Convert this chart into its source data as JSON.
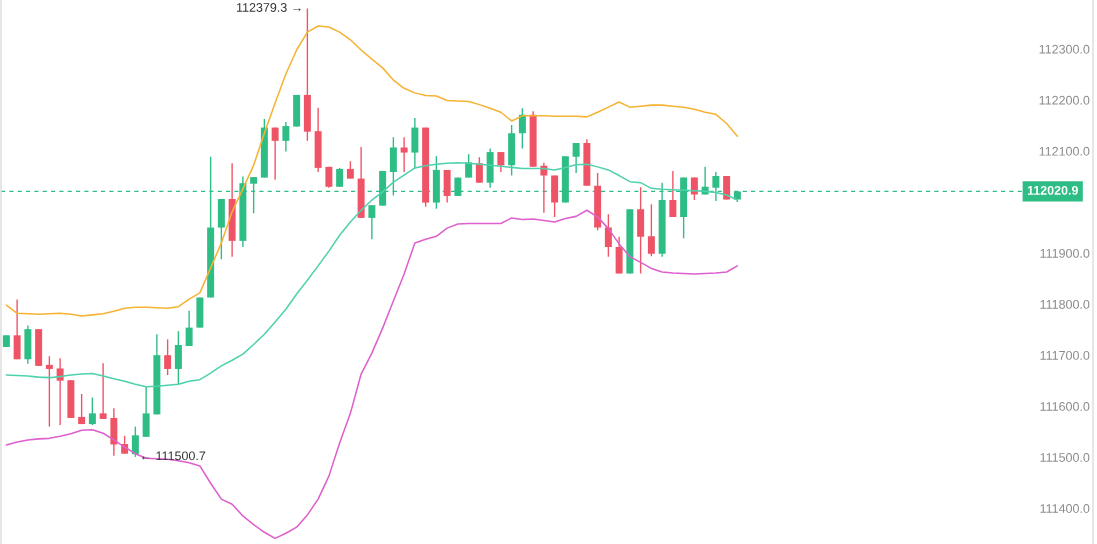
{
  "chart_data": {
    "type": "candlestick",
    "categories": [
      null,
      null,
      null,
      null,
      null,
      null,
      null,
      null,
      null,
      null,
      null,
      null,
      null,
      null,
      null,
      null,
      null,
      null,
      null,
      null,
      null,
      null,
      null,
      null,
      null,
      null,
      null,
      null,
      null,
      null,
      null,
      null,
      null,
      null,
      null,
      null,
      null,
      null,
      null,
      null,
      null,
      null,
      null,
      null,
      null,
      null,
      null,
      null,
      null,
      null,
      null,
      null,
      null,
      null,
      null,
      null,
      null,
      null,
      null,
      null,
      null,
      null,
      null,
      null,
      null,
      null,
      null,
      null,
      null
    ],
    "ohlc": [
      [
        111716,
        111739,
        111716,
        111739
      ],
      [
        111739,
        111809,
        111692,
        111692
      ],
      [
        111692,
        111758,
        111683,
        111751
      ],
      [
        111751,
        111751,
        111679,
        111679
      ],
      [
        111681,
        111698,
        111560,
        111673
      ],
      [
        111674,
        111694,
        111563,
        111650
      ],
      [
        111651,
        111651,
        111577,
        111577
      ],
      [
        111579,
        111624,
        111565,
        111565
      ],
      [
        111565,
        111617,
        111563,
        111586
      ],
      [
        111586,
        111684,
        111575,
        111575
      ],
      [
        111577,
        111596,
        111503,
        111525
      ],
      [
        111526,
        111542,
        111507,
        111507
      ],
      [
        111506,
        111560,
        111500.7,
        111543
      ],
      [
        111540,
        111638,
        111540,
        111586
      ],
      [
        111584,
        111741,
        111584,
        111700
      ],
      [
        111700,
        111731,
        111661,
        111673
      ],
      [
        111673,
        111747,
        111642,
        111720
      ],
      [
        111718,
        111787,
        111718,
        111754
      ],
      [
        111754,
        111813,
        111754,
        111813
      ],
      [
        111813,
        112089,
        111813,
        111950
      ],
      [
        111950,
        112006,
        111888,
        112006
      ],
      [
        112006,
        112076,
        111893,
        111924
      ],
      [
        111924,
        112050,
        111912,
        112037
      ],
      [
        112036,
        112049,
        111978,
        112049
      ],
      [
        112048,
        112163,
        112048,
        112146
      ],
      [
        112146,
        112146,
        112044,
        112120
      ],
      [
        112120,
        112157,
        112099,
        112149
      ],
      [
        112148,
        112210,
        112148,
        112210
      ],
      [
        112210,
        112379.3,
        112120,
        112138
      ],
      [
        112139,
        112185,
        112059,
        112067
      ],
      [
        112069,
        112069,
        112028,
        112030
      ],
      [
        112030,
        112067,
        112030,
        112065
      ],
      [
        112065,
        112080,
        112046,
        112046
      ],
      [
        112046,
        112108,
        111969,
        111969
      ],
      [
        111969,
        111994,
        111927,
        111994
      ],
      [
        111993,
        112061,
        111993,
        112061
      ],
      [
        112059,
        112127,
        112013,
        112107
      ],
      [
        112107,
        112127,
        112059,
        112097
      ],
      [
        112097,
        112165,
        112066,
        112146
      ],
      [
        112146,
        112146,
        111991,
        111999
      ],
      [
        111999,
        112090,
        111987,
        112063
      ],
      [
        112063,
        112063,
        111999,
        112012
      ],
      [
        112012,
        112048,
        112012,
        112048
      ],
      [
        112048,
        112094,
        112048,
        112078
      ],
      [
        112076,
        112088,
        112038,
        112038
      ],
      [
        112038,
        112105,
        112028,
        112098
      ],
      [
        112098,
        112098,
        112059,
        112072
      ],
      [
        112072,
        112151,
        112052,
        112135
      ],
      [
        112135,
        112184,
        112105,
        112171
      ],
      [
        112171,
        112178,
        112069,
        112069
      ],
      [
        112071,
        112077,
        111979,
        112052
      ],
      [
        112052,
        112052,
        111971,
        111999
      ],
      [
        111999,
        112090,
        111999,
        112090
      ],
      [
        112089,
        112116,
        112057,
        112116
      ],
      [
        112116,
        112123,
        112032,
        112032
      ],
      [
        112032,
        112057,
        111945,
        111950
      ],
      [
        111950,
        111976,
        111893,
        111912
      ],
      [
        111912,
        111932,
        111860,
        111860
      ],
      [
        111860,
        111986,
        111860,
        111986
      ],
      [
        111986,
        112029,
        111860,
        111932
      ],
      [
        111933,
        111996,
        111894,
        111899
      ],
      [
        111899,
        112038,
        111893,
        112004
      ],
      [
        112004,
        112061,
        111971,
        111971
      ],
      [
        111971,
        112048,
        111929,
        112048
      ],
      [
        112048,
        112048,
        112004,
        112015
      ],
      [
        112015,
        112069,
        112015,
        112030
      ],
      [
        112028,
        112059,
        112002,
        112051
      ],
      [
        112051,
        112051,
        112005,
        112005
      ],
      [
        112005,
        112020.9,
        112000,
        112020.9
      ]
    ],
    "colors": [
      "#2ebd85",
      "#ef5466",
      "#2ebd85",
      "#ef5466",
      "#ef5466",
      "#ef5466",
      "#ef5466",
      "#ef5466",
      "#2ebd85",
      "#ef5466",
      "#ef5466",
      "#ef5466",
      "#2ebd85",
      "#2ebd85",
      "#2ebd85",
      "#ef5466",
      "#2ebd85",
      "#2ebd85",
      "#2ebd85",
      "#2ebd85",
      "#2ebd85",
      "#ef5466",
      "#2ebd85",
      "#2ebd85",
      "#2ebd85",
      "#ef5466",
      "#2ebd85",
      "#2ebd85",
      "#ef5466",
      "#ef5466",
      "#ef5466",
      "#2ebd85",
      "#ef5466",
      "#ef5466",
      "#2ebd85",
      "#2ebd85",
      "#2ebd85",
      "#ef5466",
      "#2ebd85",
      "#ef5466",
      "#2ebd85",
      "#ef5466",
      "#2ebd85",
      "#2ebd85",
      "#ef5466",
      "#2ebd85",
      "#ef5466",
      "#2ebd85",
      "#2ebd85",
      "#ef5466",
      "#ef5466",
      "#ef5466",
      "#2ebd85",
      "#2ebd85",
      "#ef5466",
      "#ef5466",
      "#ef5466",
      "#ef5466",
      "#2ebd85",
      "#ef5466",
      "#ef5466",
      "#2ebd85",
      "#ef5466",
      "#2ebd85",
      "#ef5466",
      "#2ebd85",
      "#2ebd85",
      "#ef5466",
      "#2ebd85"
    ],
    "series": [
      {
        "type": "line",
        "color": "#f5b333",
        "values": [
          111798,
          111782,
          111781,
          111780,
          111781,
          111782,
          111780,
          111777,
          111779,
          111781,
          111786,
          111792,
          111794,
          111794,
          111793,
          111792,
          111795,
          111810,
          111822,
          111871,
          111920,
          111981,
          112026,
          112072,
          112135,
          112194,
          112251,
          112298,
          112333,
          112345,
          112343,
          112333,
          112318,
          112298,
          112280,
          112263,
          112239,
          112223,
          112214,
          112209,
          112208,
          112199,
          112198,
          112197,
          112191,
          112184,
          112176,
          112159,
          112169,
          112169,
          112169,
          112168,
          112168,
          112168,
          112167,
          112176,
          112186,
          112196,
          112186,
          112188,
          112190,
          112190,
          112188,
          112186,
          112182,
          112176,
          112172,
          112154,
          112129
        ]
      },
      {
        "type": "line",
        "color": "#4fd1ae",
        "values": [
          111661,
          111660,
          111659,
          111657,
          111656,
          111658,
          111661,
          111663,
          111664,
          111659,
          111654,
          111649,
          111643,
          111638,
          111639,
          111641,
          111643,
          111649,
          111652,
          111665,
          111679,
          111690,
          111702,
          111721,
          111741,
          111765,
          111790,
          111820,
          111847,
          111875,
          111904,
          111935,
          111961,
          111984,
          112004,
          112020,
          112039,
          112053,
          112067,
          112071,
          112074,
          112076,
          112077,
          112076,
          112074,
          112072,
          112070,
          112068,
          112066,
          112066,
          112066,
          112063,
          112068,
          112073,
          112074,
          112069,
          112063,
          112052,
          112040,
          112038,
          112027,
          112025,
          112024,
          112023,
          112022,
          112021,
          112019,
          112014,
          112004
        ]
      },
      {
        "type": "line",
        "color": "#de5fce",
        "values": [
          111524,
          111530,
          111534,
          111536,
          111537,
          111541,
          111546,
          111553,
          111554,
          111547,
          111534,
          111520,
          111507,
          111498,
          111497,
          111496,
          111493,
          111489,
          111483,
          111449,
          111418,
          111408,
          111385,
          111368,
          111353,
          111341,
          111351,
          111363,
          111387,
          111418,
          111463,
          111528,
          111586,
          111663,
          111704,
          111753,
          111806,
          111859,
          111920,
          111927,
          111933,
          111949,
          111957,
          111958,
          111958,
          111958,
          111958,
          111969,
          111966,
          111967,
          111964,
          111961,
          111968,
          111972,
          111984,
          111971,
          111948,
          111918,
          111893,
          111882,
          111870,
          111863,
          111861,
          111860,
          111859,
          111860,
          111861,
          111863,
          111875
        ]
      }
    ],
    "ylim": [
      111330,
      112396
    ],
    "yticks": [
      {
        "value": 111400,
        "label": "111400.0"
      },
      {
        "value": 111500,
        "label": "111500.0"
      },
      {
        "value": 111600,
        "label": "111600.0"
      },
      {
        "value": 111700,
        "label": "111700.0"
      },
      {
        "value": 111800,
        "label": "111800.0"
      },
      {
        "value": 111900,
        "label": "111900.0"
      },
      {
        "value": 112100,
        "label": "112100.0"
      },
      {
        "value": 112200,
        "label": "112200.0"
      },
      {
        "value": 112300,
        "label": "112300.0"
      }
    ],
    "tick_labels": "y",
    "ref_lines": [
      {
        "axis": "y",
        "value": 112020.9,
        "label": "112020.9",
        "color": "#2ebd85",
        "line_style": "dashed"
      }
    ],
    "annotations": [
      "112379.3 →",
      "← 111500.7"
    ]
  }
}
